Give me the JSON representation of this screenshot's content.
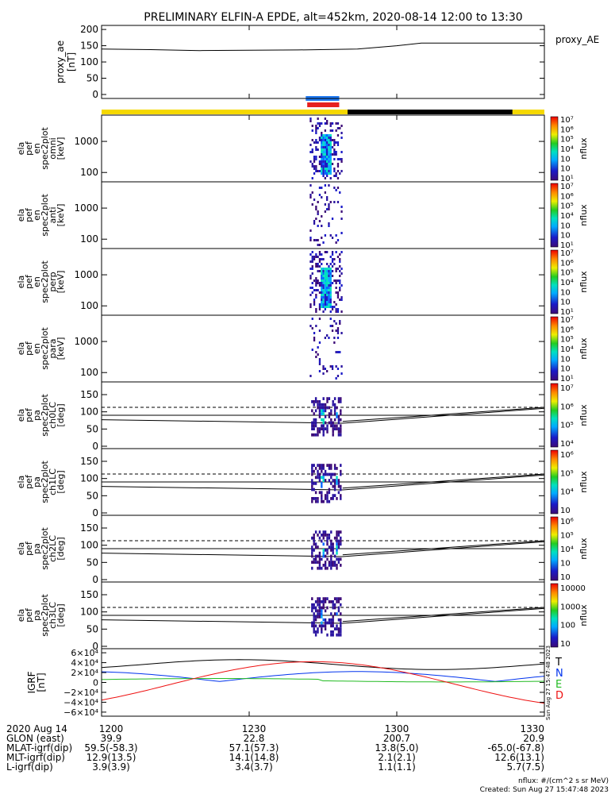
{
  "title": "PRELIMINARY ELFIN-A EPDE, alt=452km, 2020-08-14 12:00 to 13:30",
  "proxy_ae": {
    "ylabel": [
      "proxy_ae",
      "[nT]"
    ],
    "legend": "proxy_AE",
    "yticks": [
      "200",
      "150",
      "100",
      "50",
      "0"
    ],
    "ytick_values": [
      200,
      150,
      100,
      50,
      0
    ],
    "ylim": [
      0,
      210
    ],
    "series": [
      [
        0,
        140
      ],
      [
        10,
        138
      ],
      [
        20,
        135
      ],
      [
        30,
        136
      ],
      [
        40,
        137
      ],
      [
        52,
        140
      ],
      [
        60,
        150
      ],
      [
        65,
        158
      ],
      [
        90,
        158
      ]
    ]
  },
  "bars": {
    "colors": {
      "yellow": "#f5d800",
      "black": "#000000",
      "blue": "#1e78f0",
      "red": "#e62020"
    }
  },
  "spec_panels": [
    {
      "ylabel": [
        "ela",
        "pef",
        "en",
        "spec2plot",
        "omni",
        "[keV]"
      ],
      "yticks": [
        "1000",
        "100"
      ],
      "cb_ticks": [
        "10⁷",
        "10⁶",
        "10⁵",
        "10⁴",
        "10⁳",
        "10⁲",
        "10¹"
      ],
      "cb_label": "nflux",
      "ylog": true,
      "yrange_kev": [
        50,
        7000
      ]
    },
    {
      "ylabel": [
        "ela",
        "pef",
        "en",
        "spec2plot",
        "anti",
        "[keV]"
      ],
      "yticks": [
        "1000",
        "100"
      ],
      "cb_ticks": [
        "10⁷",
        "10⁶",
        "10⁵",
        "10⁴",
        "10⁳",
        "10⁲",
        "10¹"
      ],
      "cb_label": "nflux",
      "ylog": true,
      "yrange_kev": [
        50,
        7000
      ]
    },
    {
      "ylabel": [
        "ela",
        "pef",
        "en",
        "spec2plot",
        "perp",
        "[keV]"
      ],
      "yticks": [
        "1000",
        "100"
      ],
      "cb_ticks": [
        "10⁷",
        "10⁶",
        "10⁵",
        "10⁴",
        "10⁳",
        "10⁲",
        "10¹"
      ],
      "cb_label": "nflux",
      "ylog": true,
      "yrange_kev": [
        50,
        7000
      ]
    },
    {
      "ylabel": [
        "ela",
        "pef",
        "en",
        "spec2plot",
        "para",
        "[keV]"
      ],
      "yticks": [
        "1000",
        "100"
      ],
      "cb_ticks": [
        "10⁷",
        "10⁶",
        "10⁵",
        "10⁴",
        "10⁳",
        "10⁲",
        "10¹"
      ],
      "cb_label": "nflux",
      "ylog": true,
      "yrange_kev": [
        50,
        7000
      ]
    }
  ],
  "pa_panels": [
    {
      "ylabel": [
        "ela",
        "pef",
        "pa",
        "spec2plot",
        "ch0LC",
        "[deg]"
      ],
      "yticks": [
        "150",
        "100",
        "50",
        "0"
      ],
      "cb_ticks": [
        "10⁷",
        "10⁶",
        "10⁵",
        "10⁴"
      ],
      "cb_label": "nflux",
      "ylim": [
        0,
        180
      ]
    },
    {
      "ylabel": [
        "ela",
        "pef",
        "pa",
        "spec2plot",
        "ch1LC",
        "[deg]"
      ],
      "yticks": [
        "150",
        "100",
        "50",
        "0"
      ],
      "cb_ticks": [
        "10⁶",
        "10⁵",
        "10⁴",
        "10⁳"
      ],
      "cb_label": "nflux",
      "ylim": [
        0,
        180
      ]
    },
    {
      "ylabel": [
        "ela",
        "pef",
        "pa",
        "spec2plot",
        "ch2LC",
        "[deg]"
      ],
      "yticks": [
        "150",
        "100",
        "50",
        "0"
      ],
      "cb_ticks": [
        "10⁶",
        "10⁵",
        "10⁴",
        "10⁳",
        "10⁲"
      ],
      "cb_label": "nflux",
      "ylim": [
        0,
        180
      ]
    },
    {
      "ylabel": [
        "ela",
        "pef",
        "pa",
        "spec2plot",
        "ch3LC",
        "[deg]"
      ],
      "yticks": [
        "150",
        "100",
        "50",
        "0"
      ],
      "cb_ticks": [
        "10000",
        "1000",
        "100",
        "10"
      ],
      "cb_label": "nflux",
      "ylim": [
        0,
        180
      ]
    }
  ],
  "igrf": {
    "ylabel": [
      "IGRF",
      "[nT]"
    ],
    "yticks": [
      "6×10⁴",
      "4×10⁴",
      "2×10⁴",
      "0",
      "−2×10⁴",
      "−4×10⁴",
      "−6×10⁴"
    ],
    "ytick_values": [
      60000,
      40000,
      20000,
      0,
      -20000,
      -40000,
      -60000
    ],
    "legend": [
      "T",
      "N",
      "E",
      "D"
    ],
    "legend_colors": [
      "#000000",
      "#0033ee",
      "#22bb22",
      "#ee1111"
    ],
    "side_stamp": "Sun Aug 27 15:47:48 2023"
  },
  "xaxis": {
    "ticks": [
      "1200",
      "1230",
      "1300",
      "1330"
    ],
    "tick_minutes": [
      0,
      30,
      60,
      90
    ],
    "range_minutes": [
      0,
      90
    ]
  },
  "ephem": {
    "labels": [
      "2020 Aug 14",
      "GLON (east)",
      "MLAT-igrf(dip)",
      "MLT-igrf(dip)",
      "L-igrf(dip)"
    ],
    "columns": [
      [
        "1200",
        "39.9",
        "59.5(-58.3)",
        "12.9(13.5)",
        "3.9(3.9)"
      ],
      [
        "1230",
        "22.8",
        "57.1(57.3)",
        "14.1(14.8)",
        "3.4(3.7)"
      ],
      [
        "1300",
        "200.7",
        "13.8(5.0)",
        "2.1(2.1)",
        "1.1(1.1)"
      ],
      [
        "1330",
        "20.9",
        "-65.0(-67.8)",
        "12.6(13.1)",
        "5.7(7.5)"
      ]
    ]
  },
  "footer": {
    "units": "nflux: #/(cm^2 s sr MeV)",
    "created": "Created: Sun Aug 27 15:47:48 2023"
  }
}
